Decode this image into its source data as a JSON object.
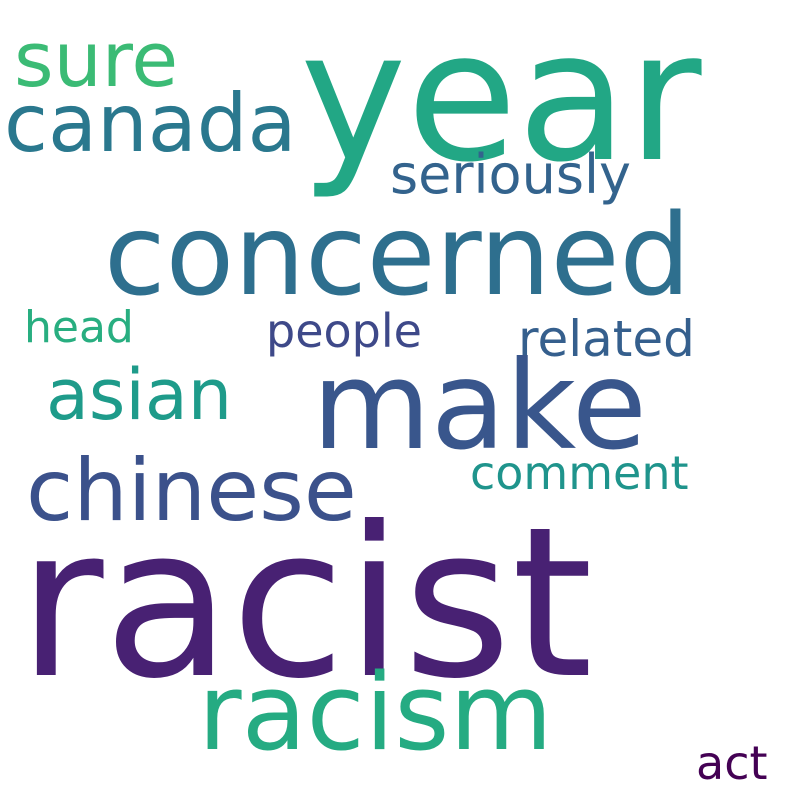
{
  "words": {
    "racist": {
      "text": "racist",
      "color": "#482173"
    },
    "year": {
      "text": "year",
      "color": "#22a785"
    },
    "make": {
      "text": "make",
      "color": "#39568c"
    },
    "concerned": {
      "text": "concerned",
      "color": "#2e6f8e"
    },
    "racism": {
      "text": "racism",
      "color": "#25ab82"
    },
    "chinese": {
      "text": "chinese",
      "color": "#3b518b"
    },
    "canada": {
      "text": "canada",
      "color": "#2a788e"
    },
    "sure": {
      "text": "sure",
      "color": "#3bbb75"
    },
    "asian": {
      "text": "asian",
      "color": "#1e9b8a"
    },
    "seriously": {
      "text": "seriously",
      "color": "#33638d"
    },
    "related": {
      "text": "related",
      "color": "#355f8d"
    },
    "comment": {
      "text": "comment",
      "color": "#1f948c"
    },
    "people": {
      "text": "people",
      "color": "#3e4989"
    },
    "head": {
      "text": "head",
      "color": "#28ae80"
    },
    "act": {
      "text": "act",
      "color": "#440154"
    }
  }
}
